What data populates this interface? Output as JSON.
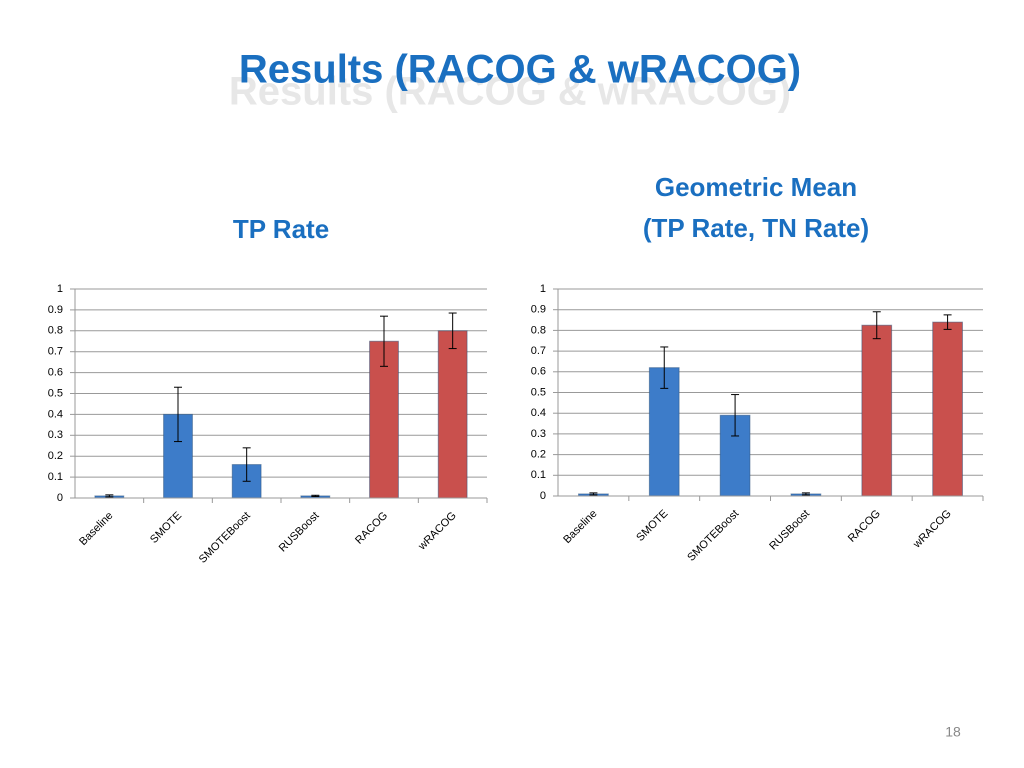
{
  "slide": {
    "title": "Results (RACOG & wRACOG)",
    "page_number": "18"
  },
  "chart_data": [
    {
      "type": "bar",
      "title": [
        "TP Rate"
      ],
      "categories": [
        "Baseline",
        "SMOTE",
        "SMOTEBoost",
        "RUSBoost",
        "RACOG",
        "wRACOG"
      ],
      "values": [
        0.01,
        0.4,
        0.16,
        0.01,
        0.75,
        0.8
      ],
      "errors": [
        0.005,
        0.13,
        0.08,
        0.003,
        0.12,
        0.085
      ],
      "colors": [
        "#3d7cc9",
        "#3d7cc9",
        "#3d7cc9",
        "#3d7cc9",
        "#c9504d",
        "#c9504d"
      ],
      "ylim": [
        0,
        1
      ],
      "yticks": [
        0,
        0.1,
        0.2,
        0.3,
        0.4,
        0.5,
        0.6,
        0.7,
        0.8,
        0.9,
        1
      ],
      "grid": true
    },
    {
      "type": "bar",
      "title": [
        "Geometric Mean",
        "(TP Rate, TN Rate)"
      ],
      "categories": [
        "Baseline",
        "SMOTE",
        "SMOTEBoost",
        "RUSBoost",
        "RACOG",
        "wRACOG"
      ],
      "values": [
        0.01,
        0.62,
        0.39,
        0.01,
        0.825,
        0.84
      ],
      "errors": [
        0.005,
        0.1,
        0.1,
        0.005,
        0.065,
        0.035
      ],
      "colors": [
        "#3d7cc9",
        "#3d7cc9",
        "#3d7cc9",
        "#3d7cc9",
        "#c9504d",
        "#c9504d"
      ],
      "ylim": [
        0,
        1
      ],
      "yticks": [
        0,
        0.1,
        0.2,
        0.3,
        0.4,
        0.5,
        0.6,
        0.7,
        0.8,
        0.9,
        1
      ],
      "grid": true
    }
  ]
}
